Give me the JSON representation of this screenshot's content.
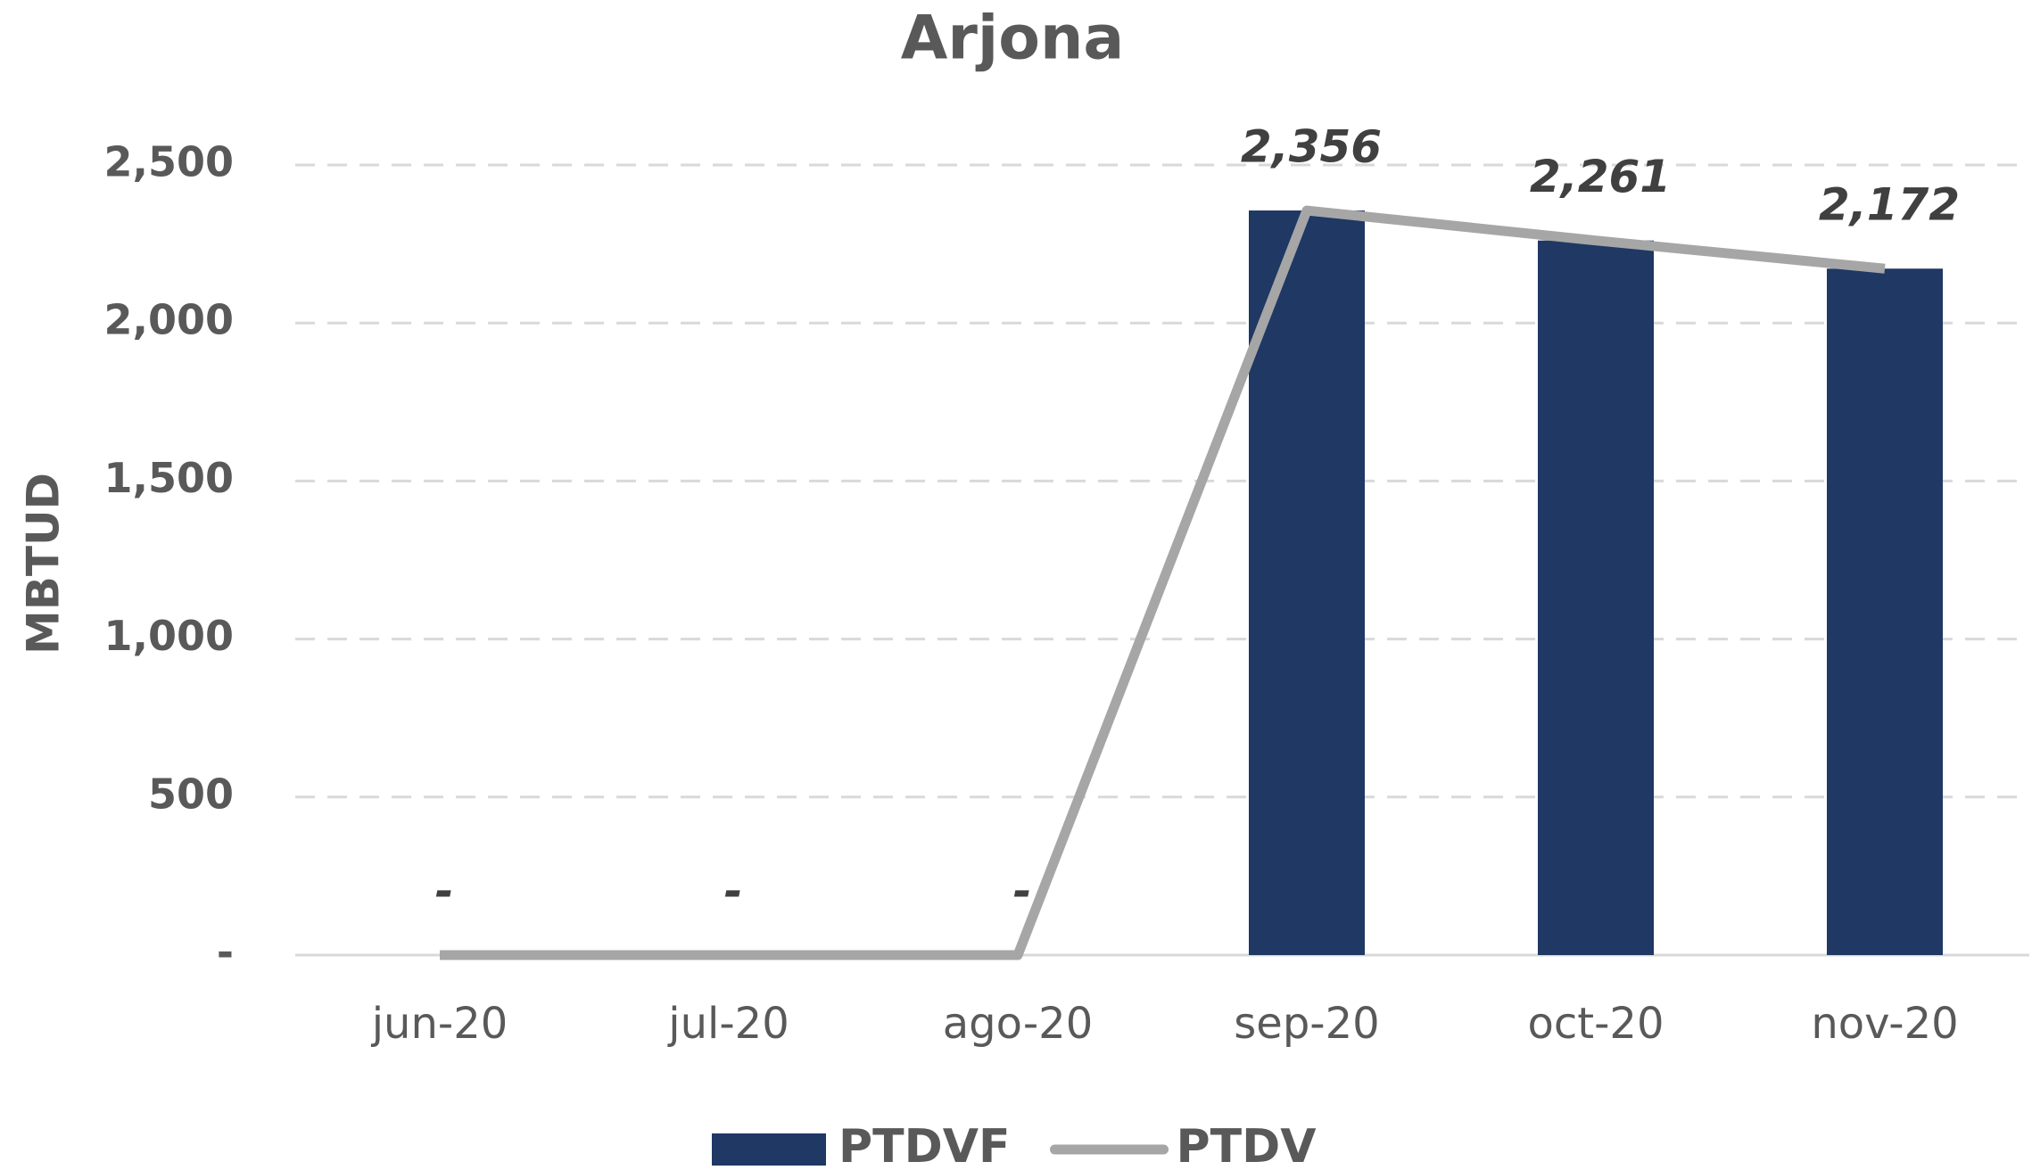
{
  "chart_data": {
    "type": "bar_line",
    "title": "Arjona",
    "y_label": "MBTUD",
    "categories": [
      "jun-20",
      "jul-20",
      "ago-20",
      "sep-20",
      "oct-20",
      "nov-20"
    ],
    "series": [
      {
        "name": "PTDVF",
        "type": "bar",
        "color": "#1f3864",
        "values": [
          0,
          0,
          0,
          2356,
          2261,
          2172
        ]
      },
      {
        "name": "PTDV",
        "type": "line",
        "color": "#a6a6a6",
        "values": [
          0,
          0,
          0,
          2356,
          2261,
          2172
        ],
        "value_labels": [
          "-",
          "-",
          "-",
          "2,356",
          "2,261",
          "2,172"
        ]
      }
    ],
    "ylim": [
      0,
      2500
    ],
    "yticks": [
      {
        "value": 0,
        "label": "-"
      },
      500,
      {
        "value": 1000,
        "label": "1,000"
      },
      {
        "value": 1500,
        "label": "1,500"
      },
      {
        "value": 2000,
        "label": "2,000"
      },
      {
        "value": 2500,
        "label": "2,500"
      }
    ],
    "grid": true,
    "legend": "bottom"
  }
}
